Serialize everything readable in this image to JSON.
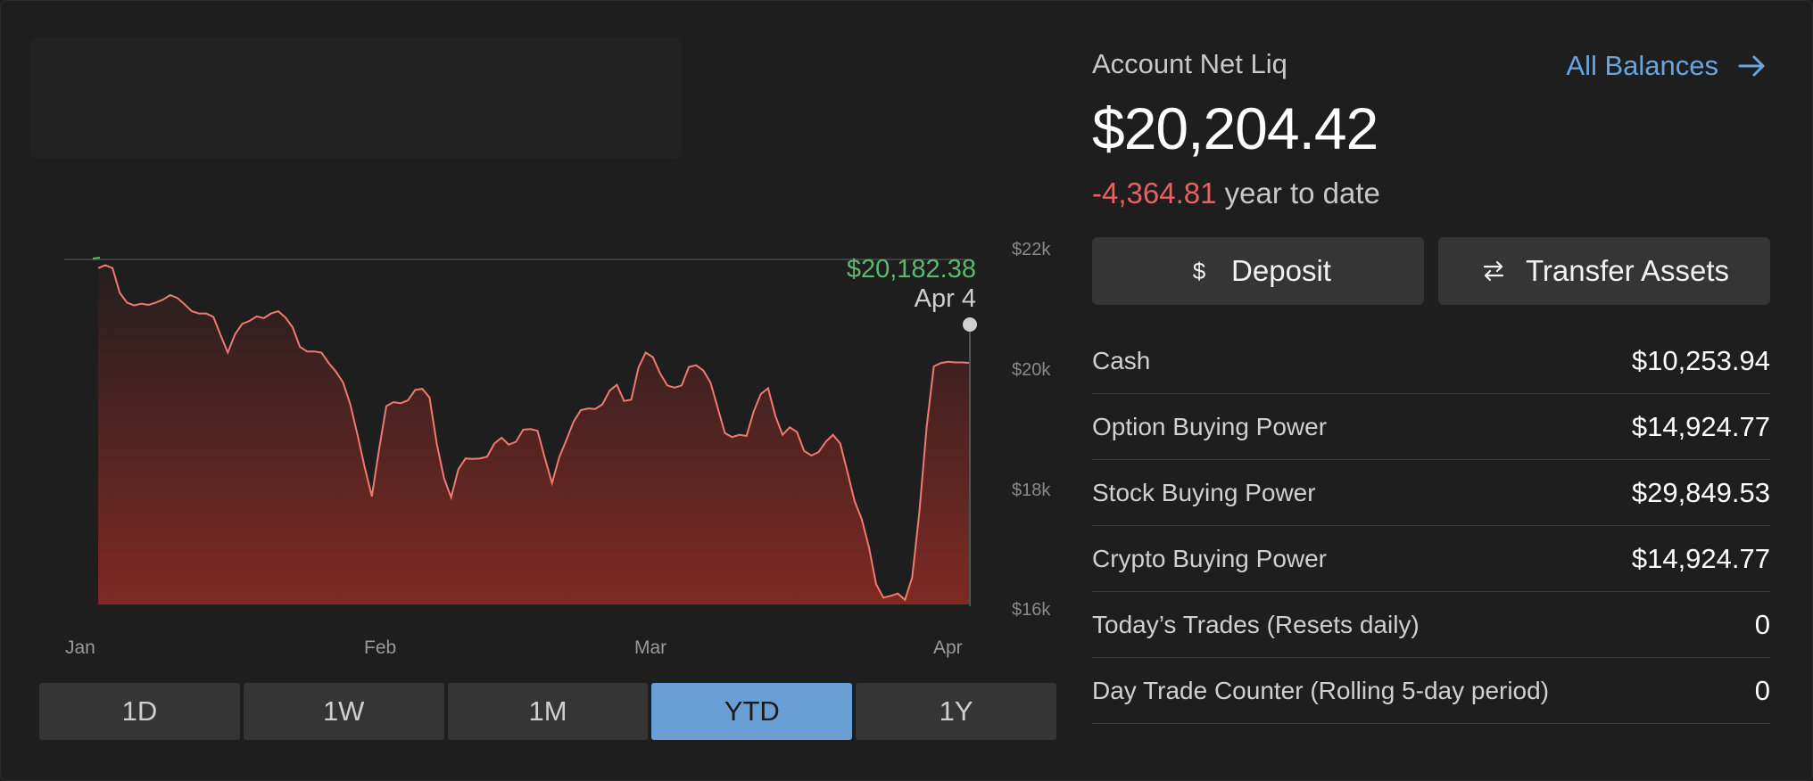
{
  "chart": {
    "y_ticks": [
      "$22k",
      "$20k",
      "$18k",
      "$16k"
    ],
    "x_ticks": [
      "Jan",
      "Feb",
      "Mar",
      "Apr"
    ],
    "tooltip": {
      "value": "$20,182.38",
      "date": "Apr 4"
    },
    "line_color": "#f07a70",
    "fill_color": "#8a2a24"
  },
  "chart_data": {
    "type": "area",
    "title": "",
    "xlabel": "",
    "ylabel": "",
    "ylim": [
      16000,
      22000
    ],
    "x_ticks": [
      "Jan",
      "Feb",
      "Mar",
      "Apr"
    ],
    "y_ticks": [
      22000,
      20000,
      18000,
      16000
    ],
    "series": [
      {
        "values": [
          21850,
          21900,
          21850,
          21420,
          21250,
          21200,
          21230,
          21210,
          21250,
          21300,
          21380,
          21330,
          21220,
          21100,
          21060,
          21060,
          21000,
          20680,
          20380,
          20700,
          20880,
          20930,
          21010,
          20980,
          21060,
          21100,
          20990,
          20820,
          20480,
          20400,
          20400,
          20380,
          20200,
          20050,
          19860,
          19480,
          18950,
          18380,
          17880,
          18700,
          19450,
          19520,
          19500,
          19550,
          19730,
          19750,
          19600,
          18800,
          18200,
          17860,
          18350,
          18540,
          18530,
          18540,
          18570,
          18800,
          18900,
          18780,
          18830,
          19040,
          19050,
          19020,
          18550,
          18110,
          18560,
          18860,
          19180,
          19380,
          19410,
          19400,
          19480,
          19720,
          19820,
          19540,
          19560,
          20120,
          20380,
          20300,
          20020,
          19810,
          19770,
          19810,
          20130,
          20160,
          20070,
          19860,
          19420,
          18980,
          18910,
          18950,
          18930,
          19360,
          19660,
          19760,
          19280,
          18950,
          19080,
          19000,
          18670,
          18590,
          18650,
          18830,
          18950,
          18800,
          18310,
          17800,
          17480,
          16990,
          16350,
          16120,
          16150,
          16190,
          16080,
          16470,
          17620,
          19090,
          20140,
          20200,
          20220,
          20210,
          20210,
          20200
        ]
      }
    ]
  },
  "ranges": [
    {
      "label": "1D",
      "active": false
    },
    {
      "label": "1W",
      "active": false
    },
    {
      "label": "1M",
      "active": false
    },
    {
      "label": "YTD",
      "active": true
    },
    {
      "label": "1Y",
      "active": false
    }
  ],
  "account": {
    "label": "Account Net Liq",
    "all_balances": "All Balances",
    "net_liq": "$20,204.42",
    "ytd_change": "-4,364.81",
    "ytd_suffix": "year to date",
    "ytd_change_color": "#e86060",
    "accent_color": "#6aa5e0"
  },
  "actions": {
    "deposit": {
      "label": "Deposit",
      "icon": "dollar-icon"
    },
    "transfer": {
      "label": "Transfer Assets",
      "icon": "swap-arrows-icon"
    }
  },
  "balances": [
    {
      "label": "Cash",
      "value": "$10,253.94"
    },
    {
      "label": "Option Buying Power",
      "value": "$14,924.77"
    },
    {
      "label": "Stock Buying Power",
      "value": "$29,849.53"
    },
    {
      "label": "Crypto Buying Power",
      "value": "$14,924.77"
    },
    {
      "label": "Today’s Trades (Resets daily)",
      "value": "0"
    },
    {
      "label": "Day Trade Counter (Rolling 5-day period)",
      "value": "0"
    }
  ]
}
